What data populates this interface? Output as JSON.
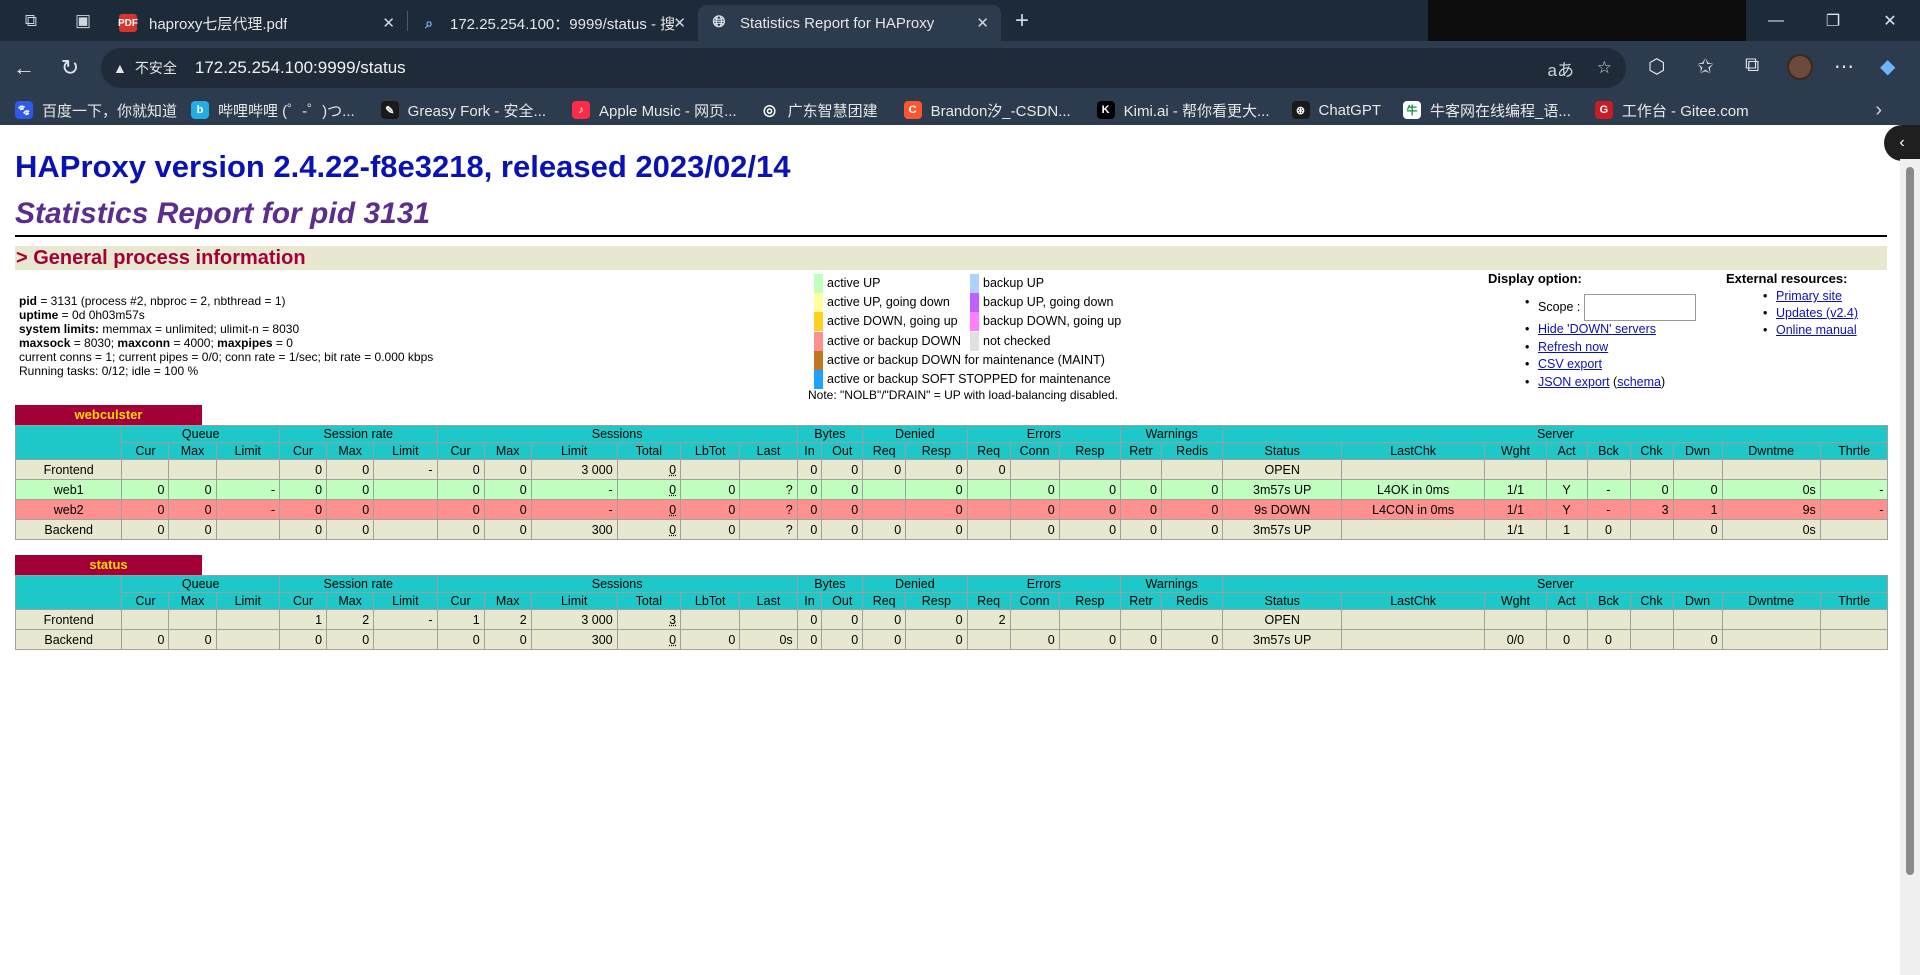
{
  "browser": {
    "tabs": [
      {
        "label": "haproxy七层代理.pdf",
        "icon": "pdf-icon"
      },
      {
        "label": "172.25.254.100：9999/status - 搜",
        "icon": "search-icon"
      },
      {
        "label": "Statistics Report for HAProxy",
        "icon": "globe-icon"
      }
    ],
    "insecure_label": "不安全",
    "url": "172.25.254.100:9999/status",
    "bookmarks": [
      {
        "label": "百度一下，你就知道",
        "color": "#2e5be5",
        "glyph": "🐾"
      },
      {
        "label": "哔哩哔哩 (゜-゜)つ...",
        "color": "#23ade5",
        "glyph": "b"
      },
      {
        "label": "Greasy Fork - 安全...",
        "color": "#1a1a1a",
        "glyph": "✎"
      },
      {
        "label": "Apple Music - 网页...",
        "color": "#fa2d48",
        "glyph": "♪"
      },
      {
        "label": "广东智慧团建",
        "color": "#2c3b4d",
        "glyph": "◎"
      },
      {
        "label": "Brandon汐_-CSDN...",
        "color": "#fc5531",
        "glyph": "C"
      },
      {
        "label": "Kimi.ai - 帮你看更大...",
        "color": "#000000",
        "glyph": "K"
      },
      {
        "label": "ChatGPT",
        "color": "#1a1a1a",
        "glyph": "⊛"
      },
      {
        "label": "牛客网在线编程_语...",
        "color": "#ffffff",
        "glyph": "牛"
      },
      {
        "label": "工作台 - Gitee.com",
        "color": "#c71d23",
        "glyph": "G"
      }
    ]
  },
  "page": {
    "title": "HAProxy version 2.4.22-f8e3218, released 2023/02/14",
    "subtitle": "Statistics Report for pid 3131",
    "general_header": "> General process information",
    "proc": {
      "line1_label": "pid",
      "line1_value": " = 3131 (process #2, nbproc = 2, nbthread = 1)",
      "line2_label": "uptime",
      "line2_value": " = 0d 0h03m57s",
      "line3_label": "system limits:",
      "line3_value": " memmax = unlimited; ulimit-n = 8030",
      "line4_a_label": "maxsock",
      "line4_a_value": " = 8030; ",
      "line4_b_label": "maxconn",
      "line4_b_value": " = 4000; ",
      "line4_c_label": "maxpipes",
      "line4_c_value": " = 0",
      "line5": "current conns = 1; current pipes = 0/0; conn rate = 1/sec; bit rate = 0.000 kbps",
      "line6": "Running tasks: 0/12; idle = 100 %"
    },
    "legend_left": [
      {
        "label": "active UP",
        "color": "#c0ffc0"
      },
      {
        "label": "active UP, going down",
        "color": "#ffffa0"
      },
      {
        "label": "active DOWN, going up",
        "color": "#ffd020"
      },
      {
        "label": "active or backup DOWN",
        "color": "#ff9090"
      },
      {
        "label": "active or backup DOWN for maintenance (MAINT)",
        "color": "#c07820"
      },
      {
        "label": "active or backup SOFT STOPPED for maintenance",
        "color": "#20a0ff"
      }
    ],
    "legend_right": [
      {
        "label": "backup UP",
        "color": "#b0d0ff"
      },
      {
        "label": "backup UP, going down",
        "color": "#c060ff"
      },
      {
        "label": "backup DOWN, going up",
        "color": "#ff80ff"
      },
      {
        "label": "not checked",
        "color": "#e0e0e0"
      }
    ],
    "note": "Note: \"NOLB\"/\"DRAIN\" = UP with load-balancing disabled.",
    "display_option": {
      "title": "Display option:",
      "scope_label": "Scope :",
      "links": [
        "Hide 'DOWN' servers",
        "Refresh now",
        "CSV export",
        "JSON export"
      ],
      "schema_open": " (",
      "schema_link": "schema",
      "schema_close": ")"
    },
    "external": {
      "title": "External resources:",
      "links": [
        "Primary site",
        "Updates (v2.4)",
        "Online manual"
      ]
    }
  },
  "proxies": [
    {
      "name": "webculster",
      "groups": [
        "Queue",
        "Session rate",
        "Sessions",
        "Bytes",
        "Denied",
        "Errors",
        "Warnings",
        "Server"
      ],
      "columns": [
        "Cur",
        "Max",
        "Limit",
        "Cur",
        "Max",
        "Limit",
        "Cur",
        "Max",
        "Limit",
        "Total",
        "LbTot",
        "Last",
        "In",
        "Out",
        "Req",
        "Resp",
        "Req",
        "Conn",
        "Resp",
        "Retr",
        "Redis",
        "Status",
        "LastChk",
        "Wght",
        "Act",
        "Bck",
        "Chk",
        "Dwn",
        "Dwntme",
        "Thrtle"
      ],
      "rows": [
        {
          "name": "Frontend",
          "kind": "fe",
          "cells": [
            "",
            "",
            "",
            "0",
            "0",
            "-",
            "0",
            "0",
            "3 000",
            "0",
            "",
            "",
            "0",
            "0",
            "0",
            "0",
            "0",
            "",
            "",
            "",
            "",
            "OPEN",
            "",
            "",
            "",
            "",
            "",
            "",
            "",
            ""
          ]
        },
        {
          "name": "web1",
          "kind": "up",
          "cells": [
            "0",
            "0",
            "-",
            "0",
            "0",
            "",
            "0",
            "0",
            "-",
            "0",
            "0",
            "?",
            "0",
            "0",
            "",
            "0",
            "",
            "0",
            "0",
            "0",
            "0",
            "3m57s UP",
            "L4OK in 0ms",
            "1/1",
            "Y",
            "-",
            "0",
            "0",
            "0s",
            "-"
          ]
        },
        {
          "name": "web2",
          "kind": "down",
          "cells": [
            "0",
            "0",
            "-",
            "0",
            "0",
            "",
            "0",
            "0",
            "-",
            "0",
            "0",
            "?",
            "0",
            "0",
            "",
            "0",
            "",
            "0",
            "0",
            "0",
            "0",
            "9s DOWN",
            "L4CON in 0ms",
            "1/1",
            "Y",
            "-",
            "3",
            "1",
            "9s",
            "-"
          ]
        },
        {
          "name": "Backend",
          "kind": "be",
          "cells": [
            "0",
            "0",
            "",
            "0",
            "0",
            "",
            "0",
            "0",
            "300",
            "0",
            "0",
            "?",
            "0",
            "0",
            "0",
            "0",
            "",
            "0",
            "0",
            "0",
            "0",
            "3m57s UP",
            "",
            "1/1",
            "1",
            "0",
            "",
            "0",
            "0s",
            ""
          ]
        }
      ]
    },
    {
      "name": "status",
      "groups": [
        "Queue",
        "Session rate",
        "Sessions",
        "Bytes",
        "Denied",
        "Errors",
        "Warnings",
        "Server"
      ],
      "columns": [
        "Cur",
        "Max",
        "Limit",
        "Cur",
        "Max",
        "Limit",
        "Cur",
        "Max",
        "Limit",
        "Total",
        "LbTot",
        "Last",
        "In",
        "Out",
        "Req",
        "Resp",
        "Req",
        "Conn",
        "Resp",
        "Retr",
        "Redis",
        "Status",
        "LastChk",
        "Wght",
        "Act",
        "Bck",
        "Chk",
        "Dwn",
        "Dwntme",
        "Thrtle"
      ],
      "rows": [
        {
          "name": "Frontend",
          "kind": "fe",
          "cells": [
            "",
            "",
            "",
            "1",
            "2",
            "-",
            "1",
            "2",
            "3 000",
            "3",
            "",
            "",
            "0",
            "0",
            "0",
            "0",
            "2",
            "",
            "",
            "",
            "",
            "OPEN",
            "",
            "",
            "",
            "",
            "",
            "",
            "",
            ""
          ]
        },
        {
          "name": "Backend",
          "kind": "be",
          "cells": [
            "0",
            "0",
            "",
            "0",
            "0",
            "",
            "0",
            "0",
            "300",
            "0",
            "0",
            "0s",
            "0",
            "0",
            "0",
            "0",
            "",
            "0",
            "0",
            "0",
            "0",
            "3m57s UP",
            "",
            "0/0",
            "0",
            "0",
            "",
            "0",
            "",
            ""
          ]
        }
      ]
    }
  ]
}
